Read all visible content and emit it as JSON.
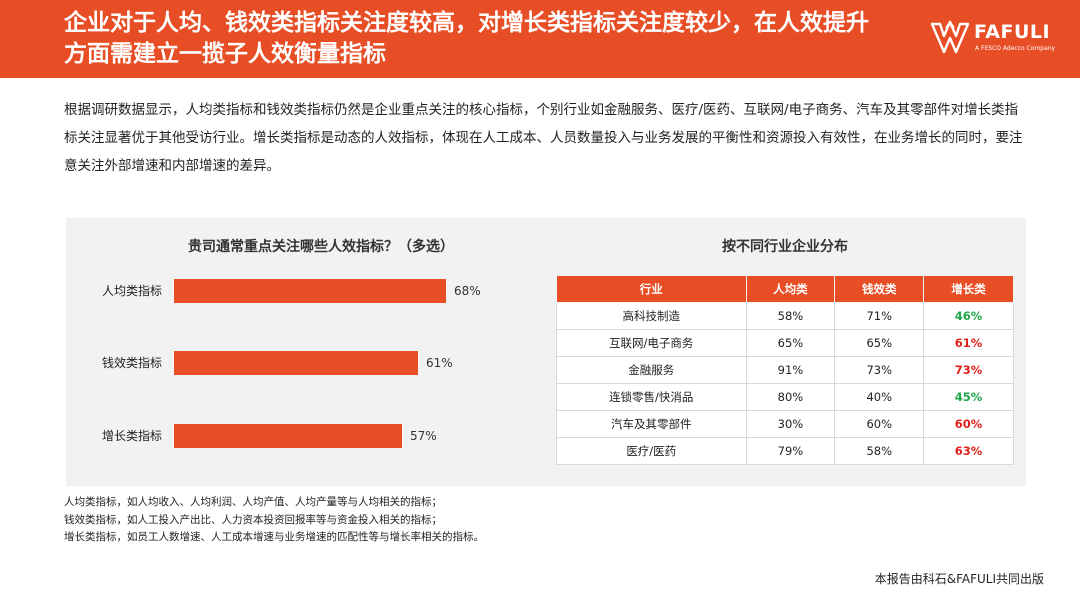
{
  "header": {
    "title": "企业对于人均、钱效类指标关注度较高，对增长类指标关注度较少，在人效提升方面需建立一揽子人效衡量指标",
    "logo_text": "FAFULI",
    "logo_sub": "A FESCO Adecco Company",
    "bg_color": "#e84e25"
  },
  "intro": "根据调研数据显示，人均类指标和钱效类指标仍然是企业重点关注的核心指标，个别行业如金融服务、医疗/医药、互联网/电子商务、汽车及其零部件对增长类指标关注显著优于其他受访行业。增长类指标是动态的人效指标，体现在人工成本、人员数量投入与业务发展的平衡性和资源投入有效性，在业务增长的同时，要注意关注外部增速和内部增速的差异。",
  "chart_data": [
    {
      "type": "bar",
      "orientation": "horizontal",
      "title": "贵司通常重点关注哪些人效指标？（多选）",
      "categories": [
        "人均类指标",
        "钱效类指标",
        "增长类指标"
      ],
      "values": [
        68,
        61,
        57
      ],
      "value_labels": [
        "68%",
        "61%",
        "57%"
      ],
      "xlim": [
        0,
        100
      ],
      "bar_color": "#e84e25",
      "grid": false
    },
    {
      "type": "table",
      "title": "按不同行业企业分布",
      "columns": [
        "行业",
        "人均类",
        "钱效类",
        "增长类"
      ],
      "rows": [
        {
          "industry": "高科技制造",
          "per_capita": "58%",
          "money_eff": "71%",
          "growth": "46%",
          "growth_color": "green"
        },
        {
          "industry": "互联网/电子商务",
          "per_capita": "65%",
          "money_eff": "65%",
          "growth": "61%",
          "growth_color": "red"
        },
        {
          "industry": "金融服务",
          "per_capita": "91%",
          "money_eff": "73%",
          "growth": "73%",
          "growth_color": "red"
        },
        {
          "industry": "连锁零售/快消品",
          "per_capita": "80%",
          "money_eff": "40%",
          "growth": "45%",
          "growth_color": "green"
        },
        {
          "industry": "汽车及其零部件",
          "per_capita": "30%",
          "money_eff": "60%",
          "growth": "60%",
          "growth_color": "red"
        },
        {
          "industry": "医疗/医药",
          "per_capita": "79%",
          "money_eff": "58%",
          "growth": "63%",
          "growth_color": "red"
        }
      ],
      "header_color": "#e84e25",
      "green": "#1ea84a",
      "red": "#e0201b"
    }
  ],
  "notes": [
    "人均类指标，如人均收入、人均利润、人均产值、人均产量等与人均相关的指标；",
    "钱效类指标，如人工投入产出比、人力资本投资回报率等与资金投入相关的指标；",
    "增长类指标，如员工人数增速、人工成本增速与业务增速的匹配性等与增长率相关的指标。"
  ],
  "source": "本报告由科石&FAFULI共同出版"
}
